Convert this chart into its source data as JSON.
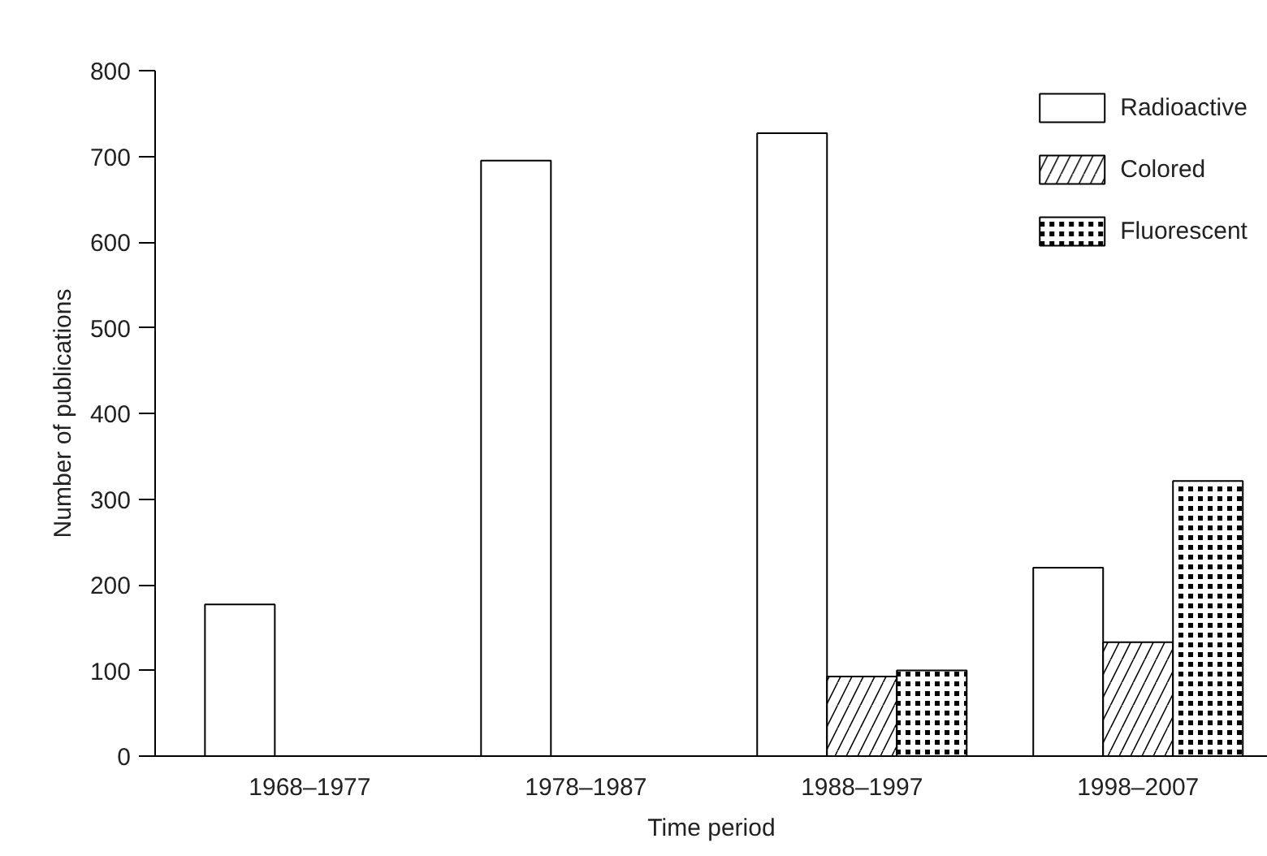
{
  "chart_data": {
    "type": "bar",
    "xlabel": "Time period",
    "ylabel": "Number of publications",
    "categories": [
      "1968–1977",
      "1978–1987",
      "1988–1997",
      "1998–2007"
    ],
    "series": [
      {
        "name": "Radioactive",
        "color": "#ffffff",
        "values": [
          177,
          695,
          727,
          220
        ]
      },
      {
        "name": "Colored",
        "color": "#ffffff",
        "values": [
          null,
          null,
          93,
          133
        ]
      },
      {
        "name": "Fluorescent",
        "color": "#000000",
        "values": [
          null,
          null,
          100,
          321
        ]
      }
    ],
    "ylim": [
      0,
      800
    ],
    "yticks": [
      0,
      100,
      200,
      300,
      400,
      500,
      600,
      700,
      800
    ],
    "grid": false,
    "legend": "top right"
  }
}
